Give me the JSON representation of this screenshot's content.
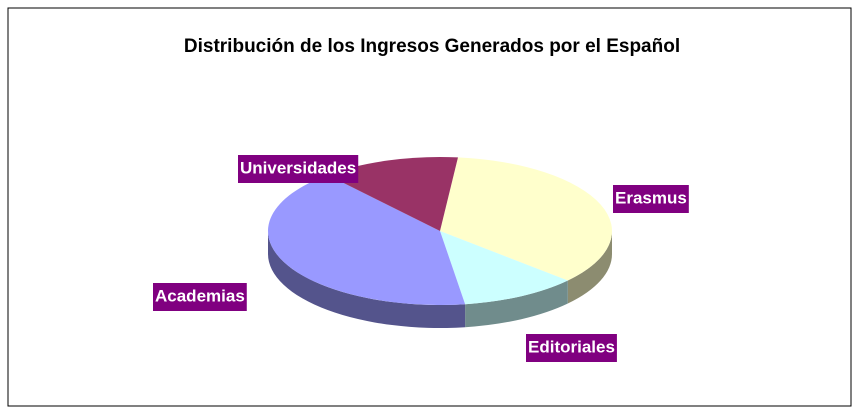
{
  "chart_data": {
    "type": "pie3d",
    "title": "Distribución de los Ingresos Generados por el Español",
    "categories": [
      "Erasmus",
      "Editoriales",
      "Academias",
      "Universidades"
    ],
    "values": [
      35,
      11,
      41,
      13
    ],
    "colors": [
      "#FFFFCC",
      "#CCFFFF",
      "#9999FF",
      "#993366"
    ],
    "label_color": "#800080"
  }
}
